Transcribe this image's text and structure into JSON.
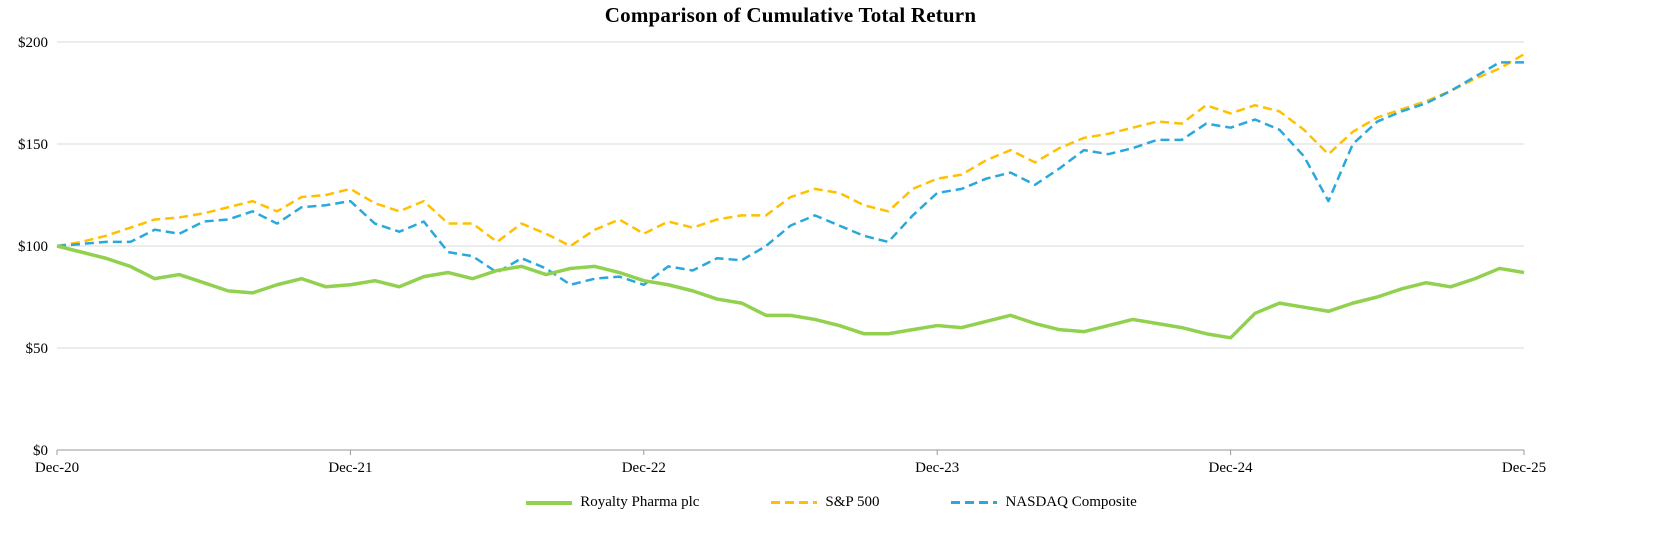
{
  "chart_data": {
    "type": "line",
    "title": "Comparison of Cumulative Total Return",
    "xlabel": "",
    "ylabel": "",
    "x_unit": "months-since-start",
    "xlim": [
      0,
      60
    ],
    "ylim": [
      0,
      200
    ],
    "grid": "horizontal",
    "legend_position": "bottom",
    "y_ticks": [
      0,
      50,
      100,
      150,
      200
    ],
    "y_tick_labels": [
      "$0",
      "$50",
      "$100",
      "$150",
      "$200"
    ],
    "x_tick_positions": [
      0,
      12,
      24,
      36,
      48,
      60
    ],
    "x_tick_labels": [
      "Dec-20",
      "Dec-21",
      "Dec-22",
      "Dec-23",
      "Dec-24",
      "Dec-25"
    ],
    "colors": {
      "grid": "#d9d9d9",
      "axis": "#9a9a9a",
      "royalty_pharma": "#92d050",
      "sp500": "#ffc000",
      "nasdaq": "#29a8dc"
    },
    "series": [
      {
        "name": "Royalty Pharma plc",
        "color": "#92d050",
        "style": "solid",
        "stroke_width": 3.5,
        "values": [
          100,
          97,
          94,
          90,
          84,
          86,
          82,
          78,
          77,
          81,
          84,
          80,
          81,
          83,
          80,
          85,
          87,
          84,
          88,
          90,
          86,
          89,
          90,
          87,
          83,
          81,
          78,
          74,
          72,
          66,
          66,
          64,
          61,
          57,
          57,
          59,
          61,
          60,
          63,
          66,
          62,
          59,
          58,
          61,
          64,
          62,
          60,
          57,
          55,
          67,
          72,
          70,
          68,
          72,
          75,
          79,
          82,
          80,
          84,
          89,
          87
        ]
      },
      {
        "name": "S&P 500",
        "color": "#ffc000",
        "style": "dashed",
        "stroke_width": 2.5,
        "values": [
          100,
          102,
          105,
          109,
          113,
          114,
          116,
          119,
          122,
          117,
          124,
          125,
          128,
          121,
          117,
          122,
          111,
          111,
          102,
          111,
          106,
          100,
          108,
          113,
          106,
          112,
          109,
          113,
          115,
          115,
          124,
          128,
          126,
          120,
          117,
          128,
          133,
          135,
          142,
          147,
          141,
          148,
          153,
          155,
          158,
          161,
          160,
          169,
          165,
          169,
          166,
          157,
          145,
          156,
          163,
          167,
          171,
          176,
          182,
          187,
          194
        ]
      },
      {
        "name": "NASDAQ Composite",
        "color": "#29a8dc",
        "style": "dashed",
        "stroke_width": 2.5,
        "values": [
          100,
          101,
          102,
          102,
          108,
          106,
          112,
          113,
          117,
          111,
          119,
          120,
          122,
          111,
          107,
          112,
          97,
          95,
          87,
          94,
          89,
          81,
          84,
          85,
          81,
          90,
          88,
          94,
          93,
          100,
          110,
          115,
          110,
          105,
          102,
          115,
          126,
          128,
          133,
          136,
          130,
          138,
          147,
          145,
          148,
          152,
          152,
          160,
          158,
          162,
          157,
          144,
          122,
          150,
          161,
          166,
          170,
          176,
          183,
          190,
          190
        ]
      }
    ]
  }
}
